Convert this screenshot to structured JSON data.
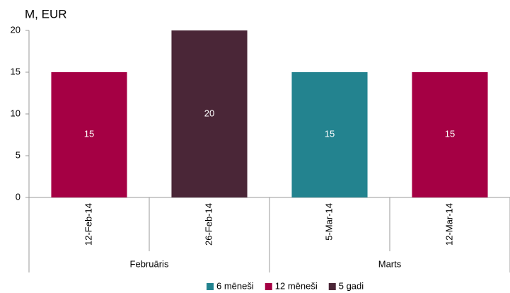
{
  "chart_data": {
    "type": "bar",
    "title": "M, EUR",
    "categories": [
      "12-Feb-14",
      "26-Feb-14",
      "5-Mar-14",
      "12-Mar-14"
    ],
    "groups": [
      {
        "name": "Februāris",
        "size": 2
      },
      {
        "name": "Marts",
        "size": 2
      }
    ],
    "series": [
      {
        "name": "6 mēneši",
        "color": "#23838f",
        "values": [
          null,
          null,
          15,
          null
        ]
      },
      {
        "name": "12 mēneši",
        "color": "#a50044",
        "values": [
          15,
          null,
          null,
          15
        ]
      },
      {
        "name": "5 gadi",
        "color": "#4a2637",
        "values": [
          null,
          20,
          null,
          null
        ]
      }
    ],
    "ylim": [
      0,
      20
    ],
    "yticks": [
      0,
      5,
      10,
      15,
      20
    ],
    "grid": false,
    "legend": "bottom",
    "data_labels": true
  }
}
